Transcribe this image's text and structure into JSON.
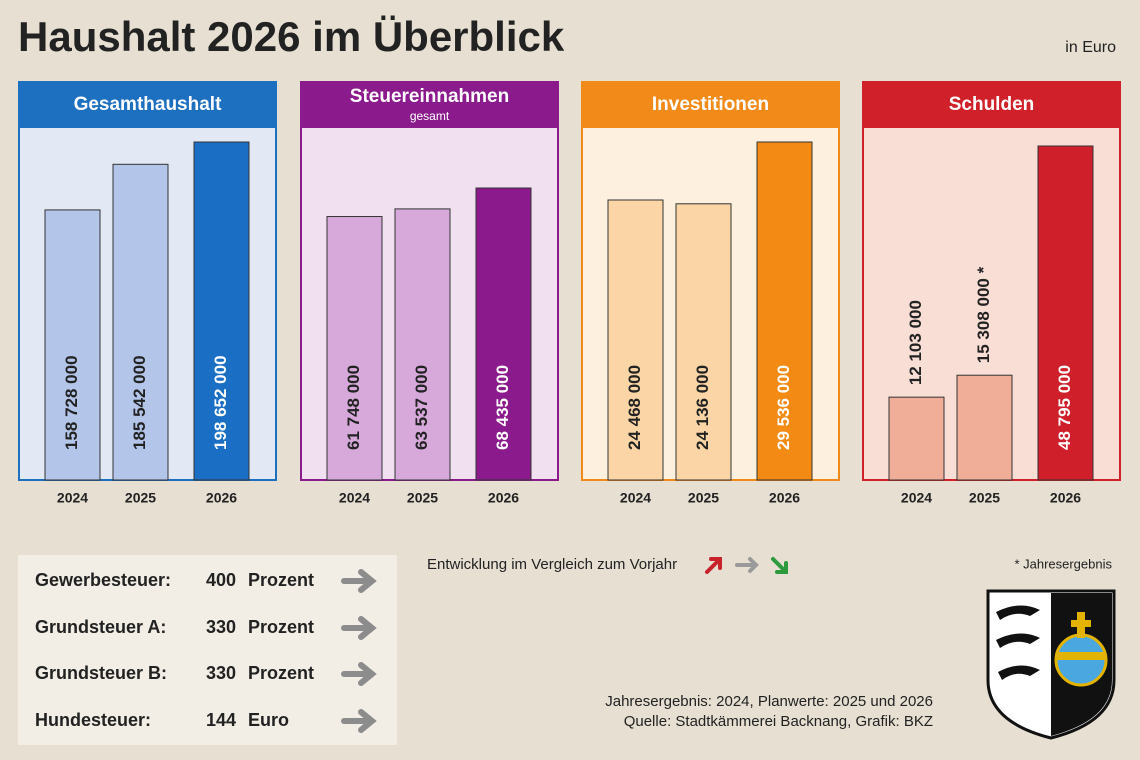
{
  "title": "Haushalt 2026 im Überblick",
  "unit_note": "in Euro",
  "chart_data": [
    {
      "type": "bar",
      "title": "Gesamthaushalt",
      "categories": [
        "2024",
        "2025",
        "2026"
      ],
      "values": [
        158728000,
        185542000,
        198652000
      ],
      "value_labels": [
        "158 728 000",
        "185 542 000",
        "198 652 000"
      ],
      "colors": [
        "#b3c6ea",
        "#b3c6ea",
        "#1a6fc4"
      ],
      "header_color": "#1d6fc0",
      "background": "#e3e8f5"
    },
    {
      "type": "bar",
      "title": "Steuereinnahmen",
      "subtitle": "gesamt",
      "categories": [
        "2024",
        "2025",
        "2026"
      ],
      "values": [
        61748000,
        63537000,
        68435000
      ],
      "value_labels": [
        "61 748 000",
        "63 537 000",
        "68 435 000"
      ],
      "colors": [
        "#d7a9db",
        "#d7a9db",
        "#8b1a8c"
      ],
      "header_color": "#8b1a8c",
      "background": "#f0e0f0"
    },
    {
      "type": "bar",
      "title": "Investitionen",
      "categories": [
        "2024",
        "2025",
        "2026"
      ],
      "values": [
        24468000,
        24136000,
        29536000
      ],
      "value_labels": [
        "24 468 000",
        "24 136 000",
        "29 536 000"
      ],
      "colors": [
        "#fbd5a5",
        "#fbd5a5",
        "#f28a14"
      ],
      "header_color": "#f28a1a",
      "background": "#fdf0df"
    },
    {
      "type": "bar",
      "title": "Schulden",
      "categories": [
        "2024",
        "2025",
        "2026"
      ],
      "values": [
        12103000,
        15308000,
        48795000
      ],
      "value_labels": [
        "12 103 000",
        "15 308 000 *",
        "48 795 000"
      ],
      "colors": [
        "#f0ae98",
        "#f0ae98",
        "#cf1f2a"
      ],
      "header_color": "#d0202a",
      "background": "#f9ded5"
    }
  ],
  "trend_legend": "Entwicklung im Vergleich zum Vorjahr",
  "taxes": [
    {
      "name": "Gewerbesteuer:",
      "value": 400,
      "unit": "Prozent"
    },
    {
      "name": "Grundsteuer A:",
      "value": 330,
      "unit": "Prozent"
    },
    {
      "name": "Grundsteuer B:",
      "value": 330,
      "unit": "Prozent"
    },
    {
      "name": "Hundesteuer:",
      "value": 144,
      "unit": "Euro"
    }
  ],
  "footnote": "* Jahresergebnis",
  "source": [
    "Jahresergebnis: 2024, Planwerte: 2025 und 2026",
    "Quelle: Stadtkämmerei Backnang, Grafik: BKZ"
  ]
}
